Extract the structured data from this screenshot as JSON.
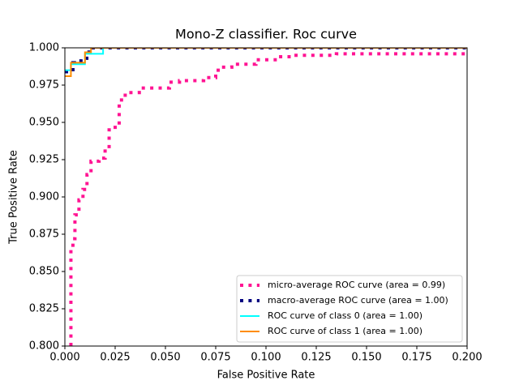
{
  "chart_data": {
    "type": "line",
    "title": "Mono-Z classifier. Roc curve",
    "xlabel": "False Positive Rate",
    "ylabel": "True Positive Rate",
    "xlim": [
      0,
      0.2
    ],
    "ylim": [
      0.8,
      1.0
    ],
    "xticks": [
      {
        "value": 0,
        "label": "0.000"
      },
      {
        "value": 0.025,
        "label": "0.025"
      },
      {
        "value": 0.05,
        "label": "0.050"
      },
      {
        "value": 0.075,
        "label": "0.075"
      },
      {
        "value": 0.1,
        "label": "0.100"
      },
      {
        "value": 0.125,
        "label": "0.125"
      },
      {
        "value": 0.15,
        "label": "0.150"
      },
      {
        "value": 0.175,
        "label": "0.175"
      },
      {
        "value": 0.2,
        "label": "0.200"
      }
    ],
    "yticks": [
      {
        "value": 0.8,
        "label": "0.800"
      },
      {
        "value": 0.825,
        "label": "0.825"
      },
      {
        "value": 0.85,
        "label": "0.850"
      },
      {
        "value": 0.875,
        "label": "0.875"
      },
      {
        "value": 0.9,
        "label": "0.900"
      },
      {
        "value": 0.925,
        "label": "0.925"
      },
      {
        "value": 0.95,
        "label": "0.950"
      },
      {
        "value": 0.975,
        "label": "0.975"
      },
      {
        "value": 1.0,
        "label": "1.000"
      }
    ],
    "legend": "lower right",
    "series": [
      {
        "name": "micro-average ROC curve (area = 0.99)",
        "color": "deeppink",
        "style": "dotted",
        "width": 4,
        "x": [
          0.003,
          0.003,
          0.004,
          0.004,
          0.005,
          0.005,
          0.007,
          0.007,
          0.009,
          0.009,
          0.011,
          0.011,
          0.013,
          0.013,
          0.017,
          0.017,
          0.02,
          0.02,
          0.022,
          0.022,
          0.025,
          0.025,
          0.027,
          0.027,
          0.03,
          0.03,
          0.037,
          0.037,
          0.052,
          0.052,
          0.057,
          0.057,
          0.069,
          0.069,
          0.075,
          0.075,
          0.078,
          0.078,
          0.083,
          0.083,
          0.095,
          0.095,
          0.106,
          0.106,
          0.114,
          0.114,
          0.135,
          0.135,
          0.2
        ],
        "values": [
          0.8,
          0.865,
          0.865,
          0.872,
          0.872,
          0.888,
          0.888,
          0.898,
          0.898,
          0.905,
          0.905,
          0.915,
          0.915,
          0.924,
          0.924,
          0.926,
          0.926,
          0.932,
          0.932,
          0.945,
          0.945,
          0.948,
          0.948,
          0.965,
          0.965,
          0.97,
          0.97,
          0.973,
          0.973,
          0.977,
          0.977,
          0.978,
          0.978,
          0.98,
          0.98,
          0.985,
          0.985,
          0.987,
          0.987,
          0.989,
          0.989,
          0.992,
          0.992,
          0.994,
          0.994,
          0.995,
          0.995,
          0.996,
          0.996
        ]
      },
      {
        "name": "macro-average ROC curve (area = 1.00)",
        "color": "navy",
        "style": "dotted",
        "width": 4,
        "x": [
          0,
          0.004,
          0.004,
          0.008,
          0.008,
          0.012,
          0.012,
          0.2
        ],
        "values": [
          0.984,
          0.984,
          0.99,
          0.99,
          0.993,
          0.993,
          1.0,
          1.0
        ]
      },
      {
        "name": "ROC curve of class 0 (area = 1.00)",
        "color": "aqua",
        "style": "solid",
        "width": 2,
        "x": [
          0,
          0.003,
          0.003,
          0.01,
          0.01,
          0.019,
          0.019,
          0.2
        ],
        "values": [
          0.985,
          0.985,
          0.989,
          0.989,
          0.996,
          0.996,
          1.0,
          1.0
        ]
      },
      {
        "name": "ROC curve of class 1 (area = 1.00)",
        "color": "darkorange",
        "style": "solid",
        "width": 2,
        "x": [
          0,
          0.003,
          0.003,
          0.01,
          0.01,
          0.013,
          0.013,
          0.2
        ],
        "values": [
          0.981,
          0.981,
          0.99,
          0.99,
          0.997,
          0.997,
          1.0,
          1.0
        ]
      }
    ]
  }
}
